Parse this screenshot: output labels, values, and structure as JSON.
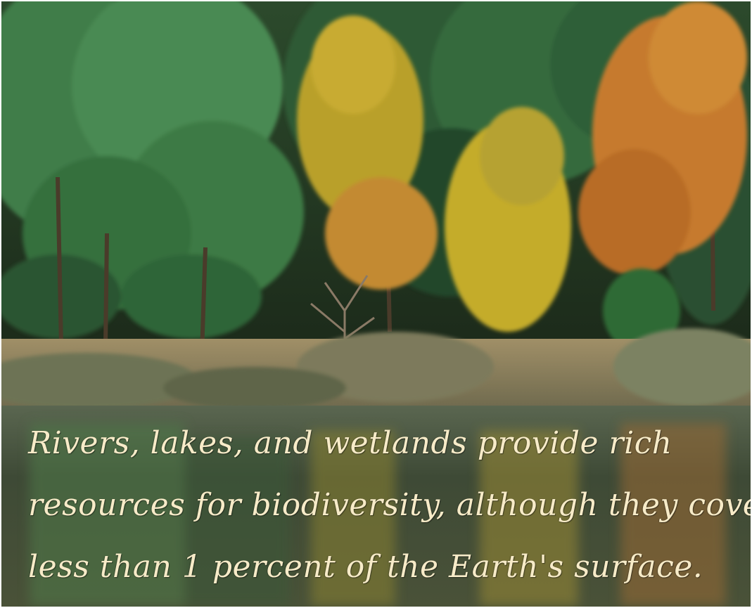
{
  "photo": {
    "description_colors": {
      "pine_green": "#2f6b3a",
      "autumn_yellow": "#c9a627",
      "autumn_orange": "#c9772b",
      "water": "#3c4a34",
      "shore": "#8a7f5e"
    }
  },
  "caption": {
    "line_1": "Rivers, lakes, and wetlands provide rich",
    "line_2": "resources for biodiversity, although they cover",
    "line_3": "less than 1 percent of the Earth's surface."
  }
}
